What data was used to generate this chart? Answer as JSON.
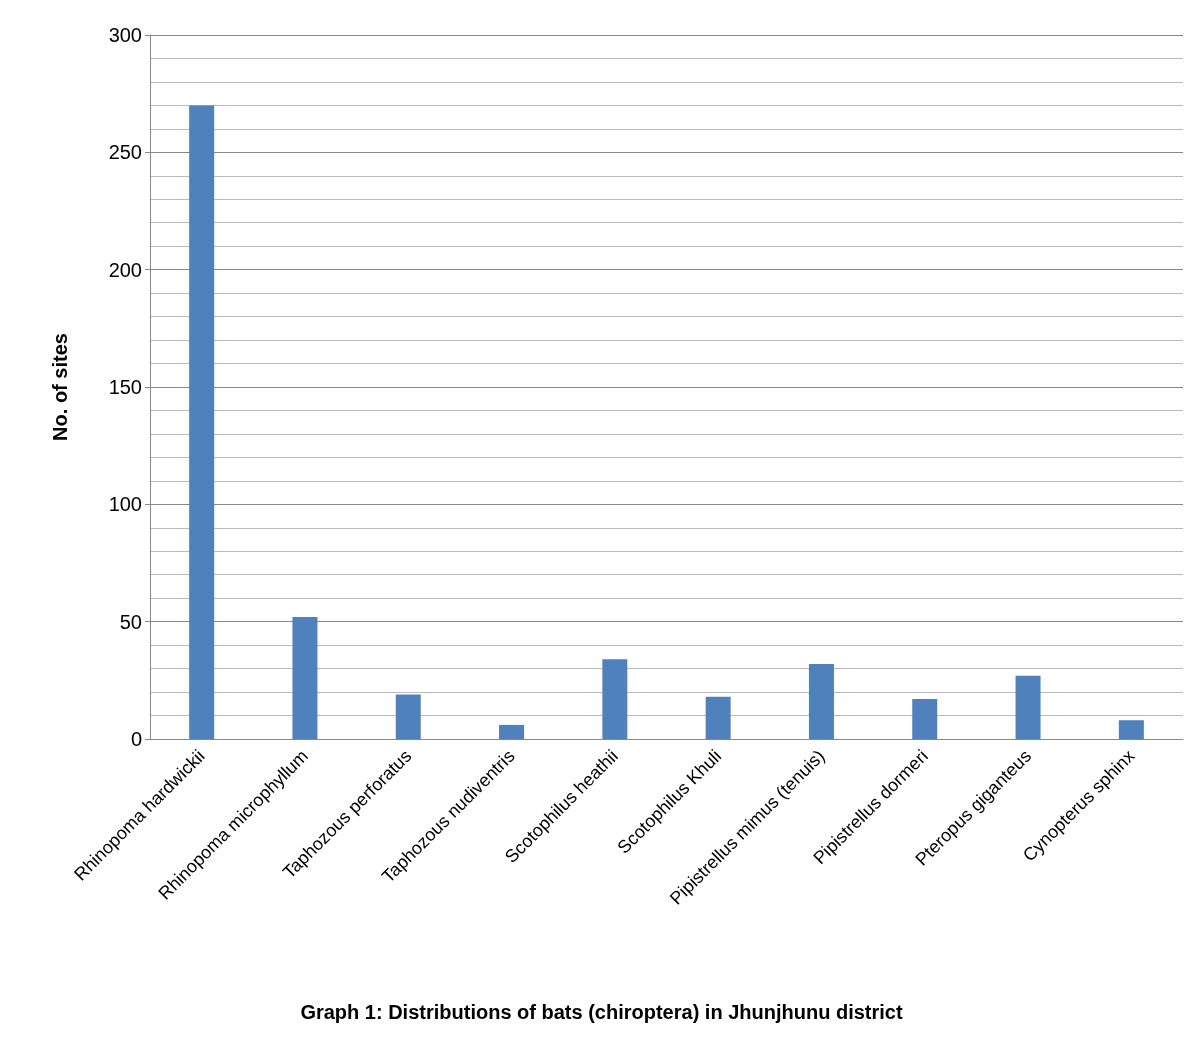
{
  "chart_data": {
    "type": "bar",
    "title": "Graph 1: Distributions of bats (chiroptera) in Jhunjhunu district",
    "ylabel": "No. of sites",
    "categories": [
      "Rhinopoma hardwickii",
      "Rhinopoma microphyllum",
      "Taphozous perforatus",
      "Taphozous nudiventris",
      "Scotophilus heathii",
      "Scotophilus Khuli",
      "Pipistrellus mimus (tenuis)",
      "Pipistrellus dormeri",
      "Pteropus giganteus",
      "Cynopterus sphinx"
    ],
    "values": [
      270,
      52,
      19,
      6,
      34,
      18,
      32,
      17,
      27,
      8
    ],
    "color": "#4f81bd",
    "ylim": [
      0,
      300
    ],
    "yticks": [
      0,
      50,
      100,
      150,
      200,
      250,
      300
    ],
    "grid": true
  }
}
